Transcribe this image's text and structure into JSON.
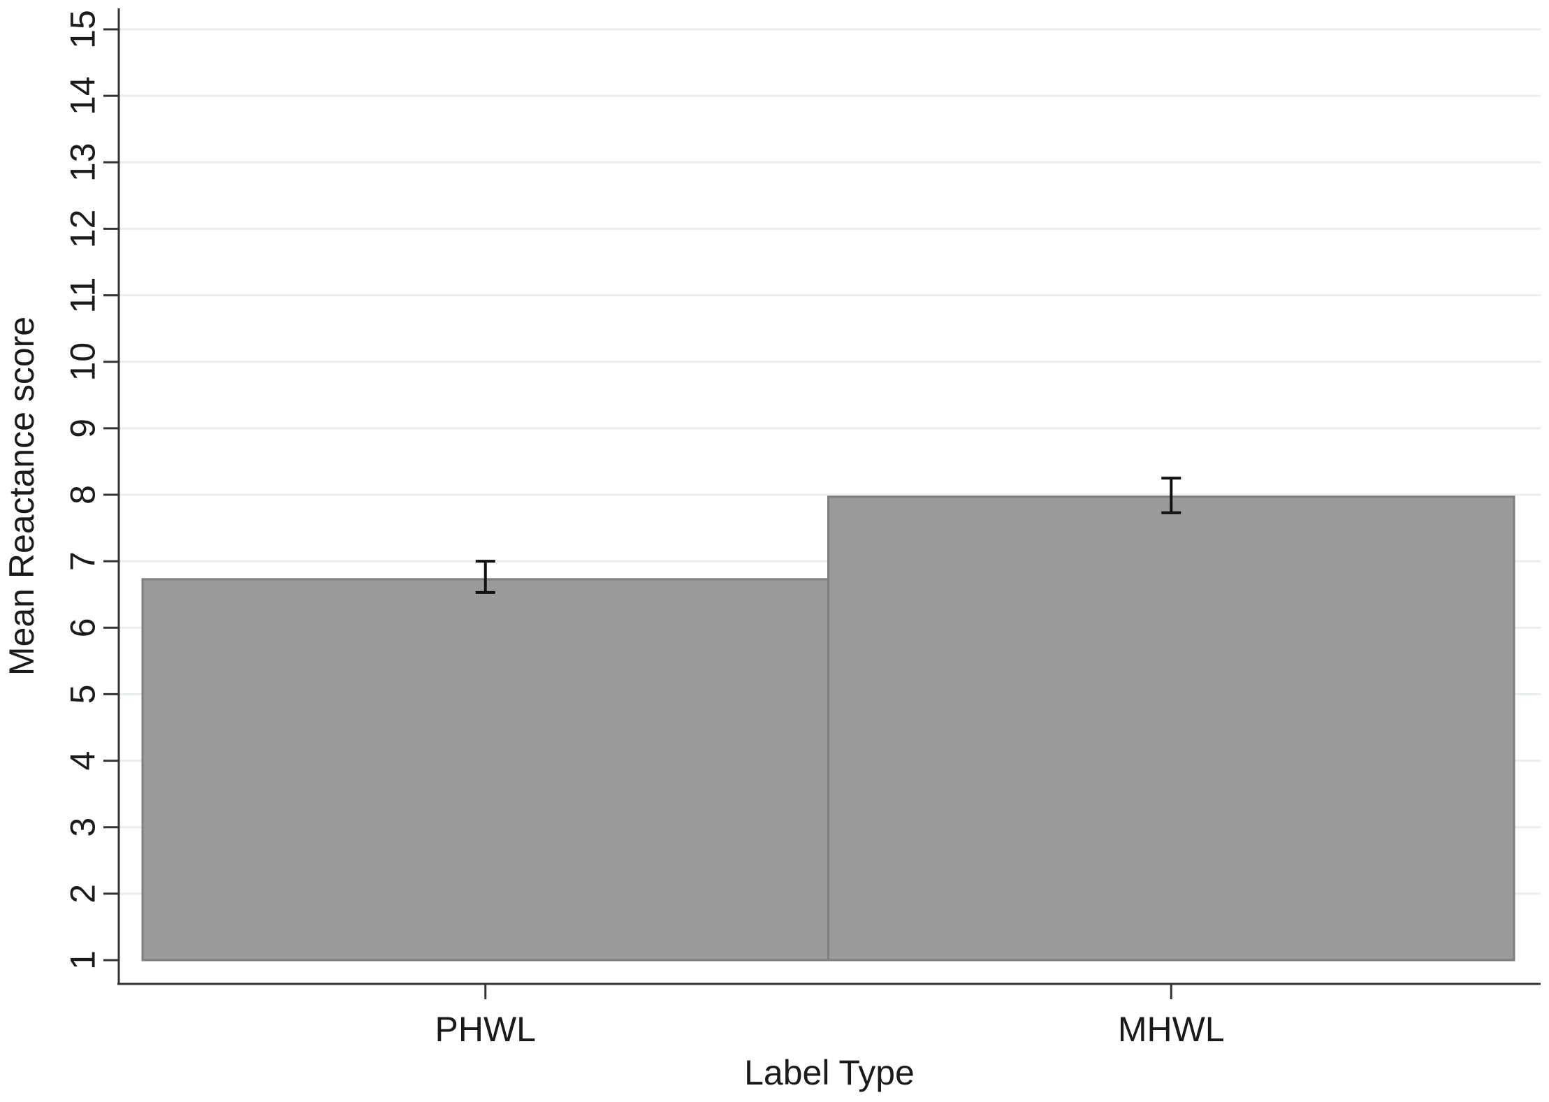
{
  "chart_data": {
    "type": "bar",
    "categories": [
      "PHWL",
      "MHWL"
    ],
    "values": [
      6.73,
      7.97
    ],
    "error_low": [
      6.53,
      7.73
    ],
    "error_high": [
      7.0,
      8.25
    ],
    "baseline": 1,
    "ylim": [
      1,
      15
    ],
    "yticks": [
      1,
      2,
      3,
      4,
      5,
      6,
      7,
      8,
      9,
      10,
      11,
      12,
      13,
      14,
      15
    ],
    "xlabel": "Label Type",
    "ylabel": "Mean Reactance score",
    "grid": true,
    "colors": {
      "bar_fill": "#9a9a9a",
      "bar_stroke": "#7f7f7f",
      "grid": "#e7efee",
      "axis": "#333333",
      "error_bar": "#111111"
    }
  }
}
